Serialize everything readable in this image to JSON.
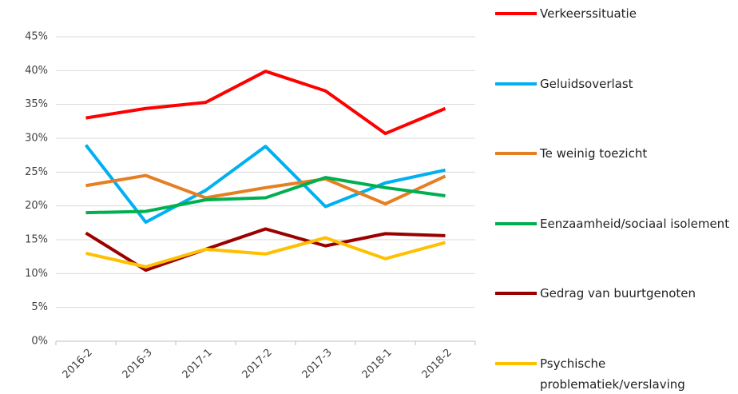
{
  "chart_data": {
    "type": "line",
    "categories": [
      "2016-2",
      "2016-3",
      "2017-1",
      "2017-2",
      "2017-3",
      "2018-1",
      "2018-2"
    ],
    "series": [
      {
        "name": "Verkeerssituatie",
        "color": "#ff0000",
        "values": [
          33,
          34.4,
          35.3,
          39.9,
          37,
          30.7,
          34.4
        ]
      },
      {
        "name": "Geluidsoverlast",
        "color": "#00b0f0",
        "values": [
          29,
          17.6,
          22.3,
          28.8,
          19.9,
          23.4,
          25.3
        ]
      },
      {
        "name": "Te weinig toezicht",
        "color": "#e67e22",
        "values": [
          23,
          24.5,
          21.2,
          22.7,
          24,
          20.3,
          24.4
        ]
      },
      {
        "name": "Eenzaamheid/sociaal isolement",
        "color": "#00b050",
        "values": [
          19,
          19.2,
          20.9,
          21.2,
          24.2,
          22.7,
          21.5
        ]
      },
      {
        "name": "Gedrag van buurtgenoten",
        "color": "#9b0000",
        "values": [
          16,
          10.5,
          13.6,
          16.6,
          14.1,
          15.9,
          15.6
        ]
      },
      {
        "name": "Psychische problematiek/verslaving",
        "color": "#ffc000",
        "values": [
          13,
          11,
          13.6,
          12.9,
          15.3,
          12.2,
          14.6
        ]
      }
    ],
    "ylim": [
      0,
      45
    ],
    "yticks": [
      {
        "value": 0,
        "label": "0%"
      },
      {
        "value": 5,
        "label": "5%"
      },
      {
        "value": 10,
        "label": "10%"
      },
      {
        "value": 15,
        "label": "15%"
      },
      {
        "value": 20,
        "label": "20%"
      },
      {
        "value": 25,
        "label": "25%"
      },
      {
        "value": 30,
        "label": "30%"
      },
      {
        "value": 35,
        "label": "35%"
      },
      {
        "value": 40,
        "label": "40%"
      },
      {
        "value": 45,
        "label": "45%"
      }
    ],
    "grid": true,
    "legend": "right"
  }
}
